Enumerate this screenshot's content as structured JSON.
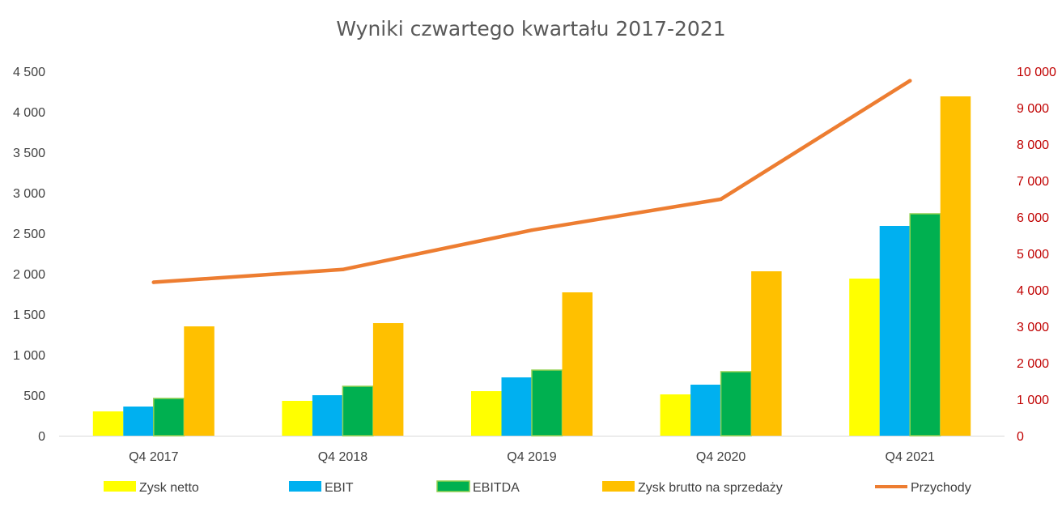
{
  "chart_data": {
    "type": "bar",
    "title": "Wyniki czwartego kwartału 2017-2021",
    "categories": [
      "Q4 2017",
      "Q4 2018",
      "Q4 2019",
      "Q4 2020",
      "Q4 2021"
    ],
    "series": [
      {
        "name": "Zysk netto",
        "type": "bar",
        "axis": "left",
        "color": "#ffff00",
        "values": [
          300,
          430,
          550,
          510,
          1940
        ]
      },
      {
        "name": "EBIT",
        "type": "bar",
        "axis": "left",
        "color": "#00b0f0",
        "values": [
          360,
          500,
          720,
          630,
          2590
        ]
      },
      {
        "name": "EBITDA",
        "type": "bar",
        "axis": "left",
        "color": "#00b050",
        "border": "#92d050",
        "values": [
          460,
          610,
          810,
          790,
          2740
        ]
      },
      {
        "name": "Zysk brutto na sprzedaży",
        "type": "bar",
        "axis": "left",
        "color": "#ffc000",
        "values": [
          1350,
          1390,
          1770,
          2030,
          4190
        ]
      },
      {
        "name": "Przychody",
        "type": "line",
        "axis": "right",
        "color": "#ed7d31",
        "values": [
          4210,
          4560,
          5640,
          6490,
          9740
        ]
      }
    ],
    "y_left": {
      "min": 0,
      "max": 4500,
      "step": 500,
      "tick_labels": [
        "0",
        "500",
        "1 000",
        "1 500",
        "2 000",
        "2 500",
        "3 000",
        "3 500",
        "4 000",
        "4 500"
      ]
    },
    "y_right": {
      "min": 0,
      "max": 10000,
      "step": 1000,
      "color": "#c00000",
      "tick_labels": [
        "0",
        "1 000",
        "2 000",
        "3 000",
        "4 000",
        "5 000",
        "6 000",
        "7 000",
        "8 000",
        "9 000",
        "10 000"
      ]
    },
    "grid": false,
    "legend_position": "bottom"
  }
}
